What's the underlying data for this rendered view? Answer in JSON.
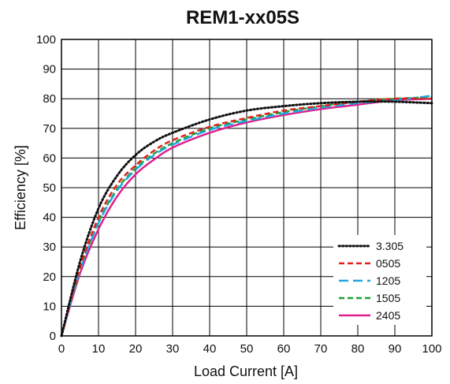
{
  "chart_data": {
    "type": "line",
    "title": "REM1-xx05S",
    "xlabel": "Load Current [A]",
    "ylabel": "Efficiency [%]",
    "xlim": [
      0,
      100
    ],
    "ylim": [
      0,
      100
    ],
    "x_ticks": [
      0,
      10,
      20,
      30,
      40,
      50,
      60,
      70,
      80,
      90,
      100
    ],
    "y_ticks": [
      0,
      10,
      20,
      30,
      40,
      50,
      60,
      70,
      80,
      90,
      100
    ],
    "grid": true,
    "legend_position": "bottom-right",
    "x": [
      0,
      5,
      10,
      15,
      20,
      25,
      30,
      40,
      50,
      60,
      70,
      80,
      90,
      100
    ],
    "series": [
      {
        "name": "3.305",
        "color": "#111111",
        "style": "dotted",
        "values": [
          0,
          25,
          43,
          54,
          61,
          65.5,
          68.5,
          73,
          76,
          77.5,
          78.5,
          79,
          79,
          78.5
        ]
      },
      {
        "name": "0505",
        "color": "#e02020",
        "style": "dashed",
        "values": [
          0,
          23,
          40,
          51,
          57.5,
          62.5,
          66,
          70.5,
          73.5,
          76,
          77.5,
          79,
          80,
          80
        ]
      },
      {
        "name": "1205",
        "color": "#20a8e0",
        "style": "long-dashed",
        "values": [
          0,
          22,
          38,
          49,
          56,
          61,
          64.5,
          69.5,
          72.5,
          75,
          77,
          78.5,
          79.5,
          81
        ]
      },
      {
        "name": "1505",
        "color": "#18a030",
        "style": "dashed",
        "values": [
          0,
          22,
          38.5,
          49.5,
          56.5,
          61.5,
          65,
          70,
          73,
          75.5,
          77.5,
          79,
          80,
          80.5
        ]
      },
      {
        "name": "2405",
        "color": "#e0208c",
        "style": "solid",
        "values": [
          0,
          21,
          36,
          47,
          54.5,
          59.5,
          63.5,
          68.5,
          72,
          74.5,
          76.5,
          78,
          79.5,
          80
        ]
      }
    ]
  }
}
